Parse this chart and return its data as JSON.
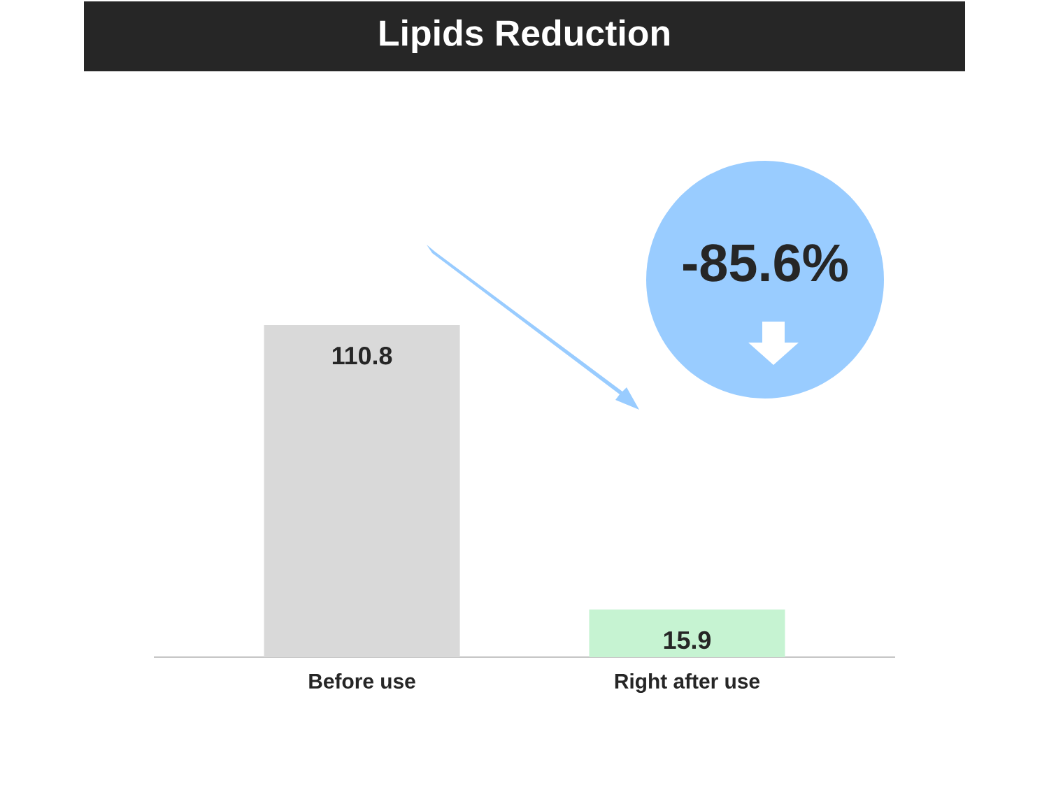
{
  "chart_data": {
    "type": "bar",
    "title": "Lipids Reduction",
    "categories": [
      "Before use",
      "Right after use"
    ],
    "values": [
      110.8,
      15.9
    ],
    "colors": [
      "#d9d9d9",
      "#c6f3d2"
    ],
    "data_labels": true,
    "annotations": [
      "-85.6%"
    ]
  }
}
